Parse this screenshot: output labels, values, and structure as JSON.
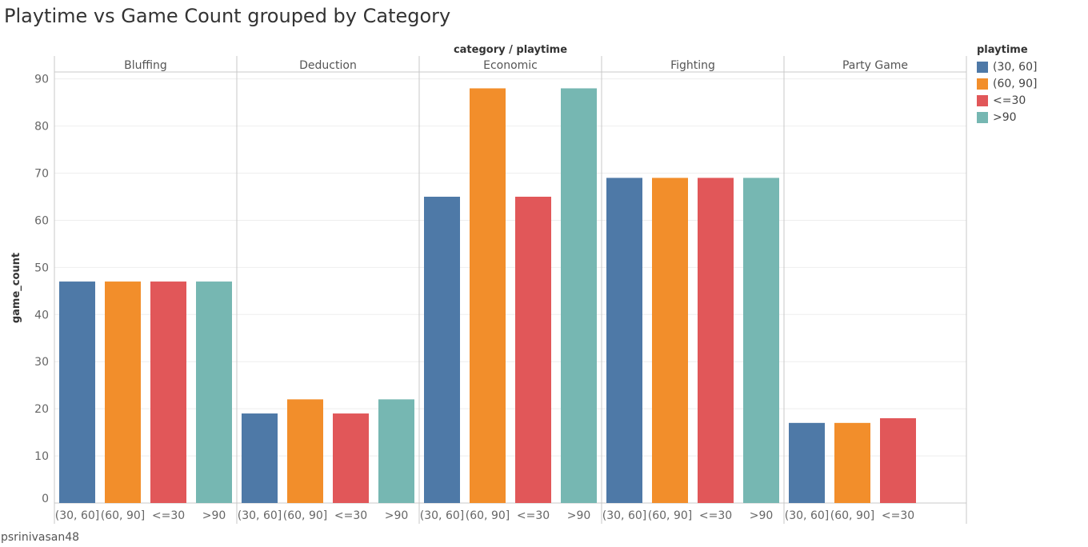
{
  "title": "Playtime vs Game Count grouped by Category",
  "footer": "psrinivasan48",
  "chart_data": {
    "type": "bar",
    "header_label": "category / playtime",
    "ylabel": "game_count",
    "ylim": [
      0,
      93
    ],
    "yticks": [
      0,
      10,
      20,
      30,
      40,
      50,
      60,
      70,
      80,
      90
    ],
    "grid": true,
    "legend_position": "right",
    "legend_title": "playtime",
    "legend": [
      {
        "label": "(30, 60]",
        "color": "#4e79a7"
      },
      {
        "label": "(60, 90]",
        "color": "#f28e2b"
      },
      {
        "label": "<=30",
        "color": "#e15759"
      },
      {
        "label": ">90",
        "color": "#76b7b2"
      }
    ],
    "panels": [
      {
        "category": "Bluffing",
        "categories": [
          "(30, 60]",
          "(60, 90]",
          "<=30",
          ">90"
        ],
        "values": [
          47,
          47,
          47,
          47
        ]
      },
      {
        "category": "Deduction",
        "categories": [
          "(30, 60]",
          "(60, 90]",
          "<=30",
          ">90"
        ],
        "values": [
          19,
          22,
          19,
          22
        ]
      },
      {
        "category": "Economic",
        "categories": [
          "(30, 60]",
          "(60, 90]",
          "<=30",
          ">90"
        ],
        "values": [
          65,
          88,
          65,
          88
        ]
      },
      {
        "category": "Fighting",
        "categories": [
          "(30, 60]",
          "(60, 90]",
          "<=30",
          ">90"
        ],
        "values": [
          69,
          69,
          69,
          69
        ]
      },
      {
        "category": "Party Game",
        "categories": [
          "(30, 60]",
          "(60, 90]",
          "<=30"
        ],
        "values": [
          17,
          17,
          18
        ]
      }
    ]
  }
}
